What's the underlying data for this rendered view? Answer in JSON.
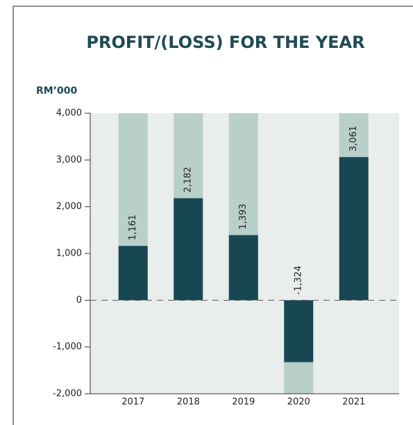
{
  "chart_data": {
    "type": "bar",
    "title": "PROFIT/(LOSS) FOR THE YEAR",
    "y_axis_label": "RM’000",
    "categories": [
      "2017",
      "2018",
      "2019",
      "2020",
      "2021"
    ],
    "values": [
      1161,
      2182,
      1393,
      -1324,
      3061
    ],
    "value_labels": [
      "1,161",
      "2,182",
      "1,393",
      "-1,324",
      "3,061"
    ],
    "color": "#174753",
    "column_color": "#b9cfc9",
    "plot_background": "#e9edeb",
    "ylim": [
      -2000,
      4000
    ],
    "yticks": [
      {
        "value": -2000,
        "label": "-2,000"
      },
      {
        "value": -1000,
        "label": "-1,000"
      },
      0,
      {
        "value": 1000,
        "label": "1,000"
      },
      {
        "value": 2000,
        "label": "2,000"
      },
      {
        "value": 3000,
        "label": "3,000"
      },
      {
        "value": 4000,
        "label": "4,000"
      }
    ],
    "zero_line": "dashed"
  }
}
